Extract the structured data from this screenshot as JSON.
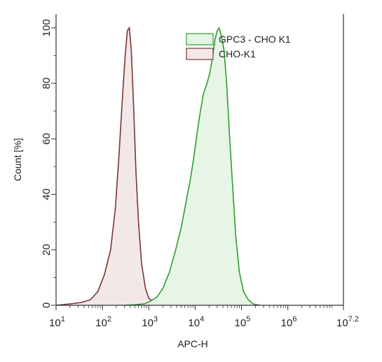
{
  "chart_data": {
    "type": "area",
    "xlabel": "APC-H",
    "ylabel": "Count [%]",
    "xscale": "log",
    "xlim": [
      10,
      15848932
    ],
    "ylim": [
      0,
      105
    ],
    "x_ticks": [
      {
        "base": "10",
        "exp": "1"
      },
      {
        "base": "10",
        "exp": "2"
      },
      {
        "base": "10",
        "exp": "3"
      },
      {
        "base": "10",
        "exp": "4"
      },
      {
        "base": "10",
        "exp": "5"
      },
      {
        "base": "10",
        "exp": "6"
      },
      {
        "base": "10",
        "exp": "7.2"
      }
    ],
    "x_tick_values": [
      10,
      100,
      1000,
      10000,
      100000,
      1000000,
      15848932
    ],
    "y_ticks": [
      "0",
      "20",
      "40",
      "60",
      "80",
      "100"
    ],
    "y_tick_values": [
      0,
      20,
      40,
      60,
      80,
      100
    ],
    "legend_position": "top-right",
    "series": [
      {
        "name": "GPC3 - CHO K1",
        "line_color": "#2e9e2e",
        "fill_color": "#e6f5e6",
        "x": [
          300,
          500,
          800,
          1100,
          1500,
          2000,
          2800,
          3800,
          5000,
          6500,
          8000,
          9500,
          11000,
          13000,
          15000,
          18000,
          21000,
          24000,
          27000,
          30000,
          33000,
          37000,
          42000,
          48000,
          55000,
          65000,
          75000,
          90000,
          110000,
          140000,
          180000,
          250000
        ],
        "y": [
          0,
          0.2,
          0.5,
          1.5,
          3,
          6,
          12,
          20,
          28,
          38,
          46,
          54,
          62,
          70,
          76,
          80,
          84,
          90,
          96,
          99,
          100,
          97,
          92,
          80,
          62,
          42,
          25,
          12,
          5,
          2,
          0.5,
          0
        ]
      },
      {
        "name": "CHO-K1",
        "line_color": "#7a3535",
        "fill_color": "#f2e8e8",
        "x": [
          10,
          20,
          35,
          55,
          80,
          110,
          150,
          190,
          230,
          270,
          310,
          345,
          380,
          420,
          470,
          530,
          600,
          700,
          850,
          1000,
          1300,
          1800,
          2800,
          5000
        ],
        "y": [
          0,
          0.5,
          1,
          2,
          5,
          11,
          20,
          35,
          55,
          75,
          90,
          99,
          100,
          92,
          72,
          48,
          30,
          15,
          6,
          2.5,
          1,
          0.5,
          0.3,
          0
        ]
      }
    ]
  }
}
